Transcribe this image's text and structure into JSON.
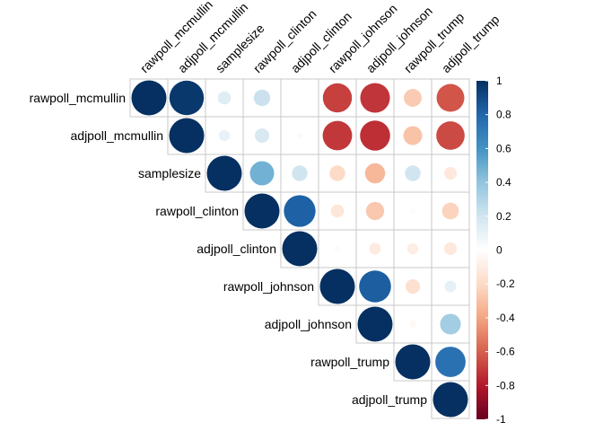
{
  "chart_data": {
    "type": "heatmap",
    "variables": [
      "rawpoll_mcmullin",
      "adjpoll_mcmullin",
      "samplesize",
      "rawpoll_clinton",
      "adjpoll_clinton",
      "rawpoll_johnson",
      "adjpoll_johnson",
      "rawpoll_trump",
      "adjpoll_trump"
    ],
    "matrix": [
      [
        1,
        0.97,
        0.14,
        0.22,
        0.01,
        -0.69,
        -0.72,
        -0.26,
        -0.63
      ],
      [
        0.97,
        1,
        0.1,
        0.17,
        -0.03,
        -0.71,
        -0.74,
        -0.29,
        -0.66
      ],
      [
        0.14,
        0.1,
        1,
        0.48,
        0.2,
        -0.2,
        -0.33,
        0.2,
        -0.13
      ],
      [
        0.22,
        0.17,
        0.48,
        1,
        0.82,
        -0.14,
        -0.27,
        -0.02,
        -0.23
      ],
      [
        0.01,
        -0.03,
        0.2,
        0.82,
        1,
        -0.03,
        -0.11,
        -0.1,
        -0.13
      ],
      [
        -0.69,
        -0.71,
        -0.2,
        -0.14,
        -0.03,
        1,
        0.83,
        -0.17,
        0.11
      ],
      [
        -0.72,
        -0.74,
        -0.33,
        -0.27,
        -0.11,
        0.83,
        1,
        -0.04,
        0.35
      ],
      [
        -0.26,
        -0.29,
        0.2,
        -0.02,
        -0.1,
        -0.17,
        -0.04,
        1,
        0.75
      ],
      [
        -0.63,
        -0.66,
        -0.13,
        -0.23,
        -0.13,
        0.11,
        0.35,
        0.75,
        1
      ]
    ],
    "layout": "upper",
    "color_scale": {
      "min": -1,
      "max": 1,
      "ticks": [
        1,
        0.8,
        0.6,
        0.4,
        0.2,
        0,
        -0.2,
        -0.4,
        -0.6,
        -0.8,
        -1
      ],
      "tick_labels": [
        "1",
        "0.8",
        "0.6",
        "0.4",
        "0.2",
        "0",
        "-0.2",
        "-0.4",
        "-0.6",
        "-0.8",
        "-1"
      ],
      "stops": [
        "#67001F",
        "#B2182B",
        "#D6604D",
        "#F4A582",
        "#FDDBC7",
        "#FFFFFF",
        "#D1E5F0",
        "#92C5DE",
        "#4393C3",
        "#2166AC",
        "#053061"
      ]
    },
    "grid_color": "#c8c8c8"
  }
}
